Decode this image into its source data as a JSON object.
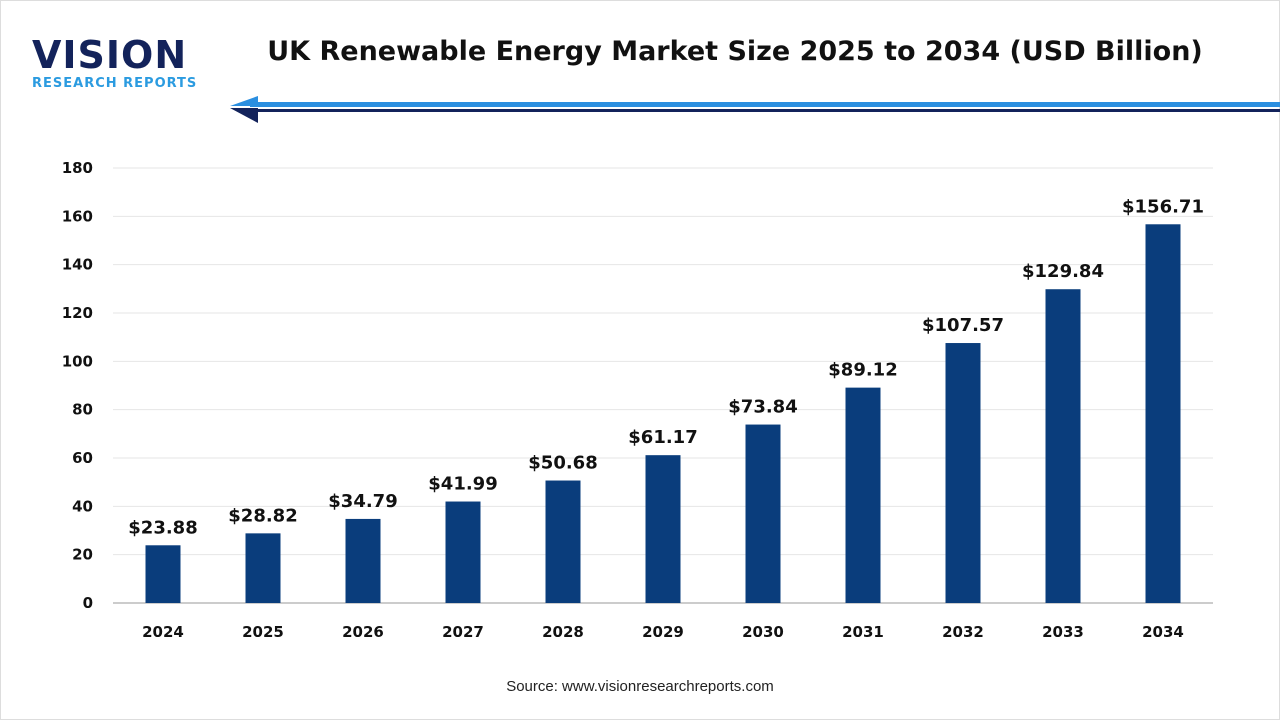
{
  "logo": {
    "main": "VISION",
    "sub": "RESEARCH REPORTS"
  },
  "chart_data": {
    "type": "bar",
    "title": "UK Renewable Energy Market Size 2025 to 2034 (USD Billion)",
    "categories": [
      "2024",
      "2025",
      "2026",
      "2027",
      "2028",
      "2029",
      "2030",
      "2031",
      "2032",
      "2033",
      "2034"
    ],
    "values": [
      23.88,
      28.82,
      34.79,
      41.99,
      50.68,
      61.17,
      73.84,
      89.12,
      107.57,
      129.84,
      156.71
    ],
    "data_labels": [
      "$23.88",
      "$28.82",
      "$34.79",
      "$41.99",
      "$50.68",
      "$61.17",
      "$73.84",
      "$89.12",
      "$107.57",
      "$129.84",
      "$156.71"
    ],
    "ylim": [
      0,
      180
    ],
    "yticks": [
      0,
      20,
      40,
      60,
      80,
      100,
      120,
      140,
      160,
      180
    ],
    "grid": true,
    "bar_color": "#0a3d7c",
    "xlabel": "",
    "ylabel": ""
  },
  "source": "Source: www.visionresearchreports.com"
}
